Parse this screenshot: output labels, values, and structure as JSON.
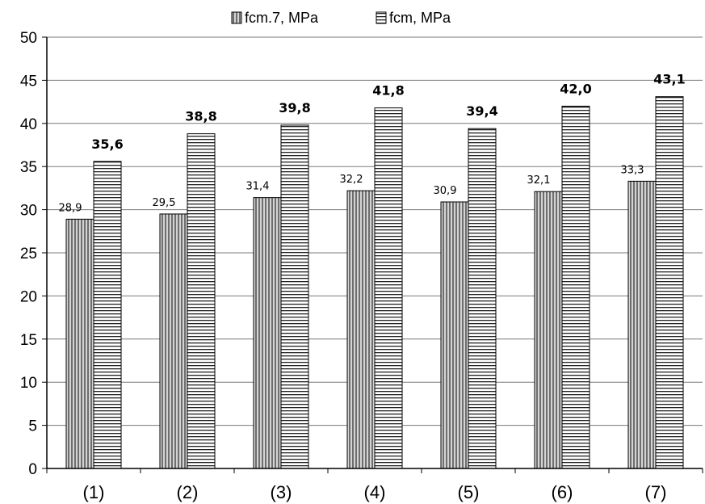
{
  "chart_data": {
    "type": "bar",
    "categories": [
      "(1)",
      "(2)",
      "(3)",
      "(4)",
      "(5)",
      "(6)",
      "(7)"
    ],
    "series": [
      {
        "name": "fcm.7, MPa",
        "values": [
          28.9,
          29.5,
          31.4,
          32.2,
          30.9,
          32.1,
          33.3
        ],
        "labels": [
          "28,9",
          "29,5",
          "31,4",
          "32,2",
          "30,9",
          "32,1",
          "33,3"
        ],
        "pattern": "vertical-stripes",
        "color": "#9a9a9a"
      },
      {
        "name": "fcm, MPa",
        "values": [
          35.6,
          38.8,
          39.8,
          41.8,
          39.4,
          42.0,
          43.1
        ],
        "labels": [
          "35,6",
          "38,8",
          "39,8",
          "41,8",
          "39,4",
          "42,0",
          "43,1"
        ],
        "pattern": "horizontal-stripes",
        "color": "#ffffff"
      }
    ],
    "ylim": [
      0,
      50
    ],
    "yticks": [
      0,
      5,
      10,
      15,
      20,
      25,
      30,
      35,
      40,
      45,
      50
    ],
    "grid": true,
    "legend": "top-center",
    "title": "",
    "xlabel": "",
    "ylabel": ""
  }
}
